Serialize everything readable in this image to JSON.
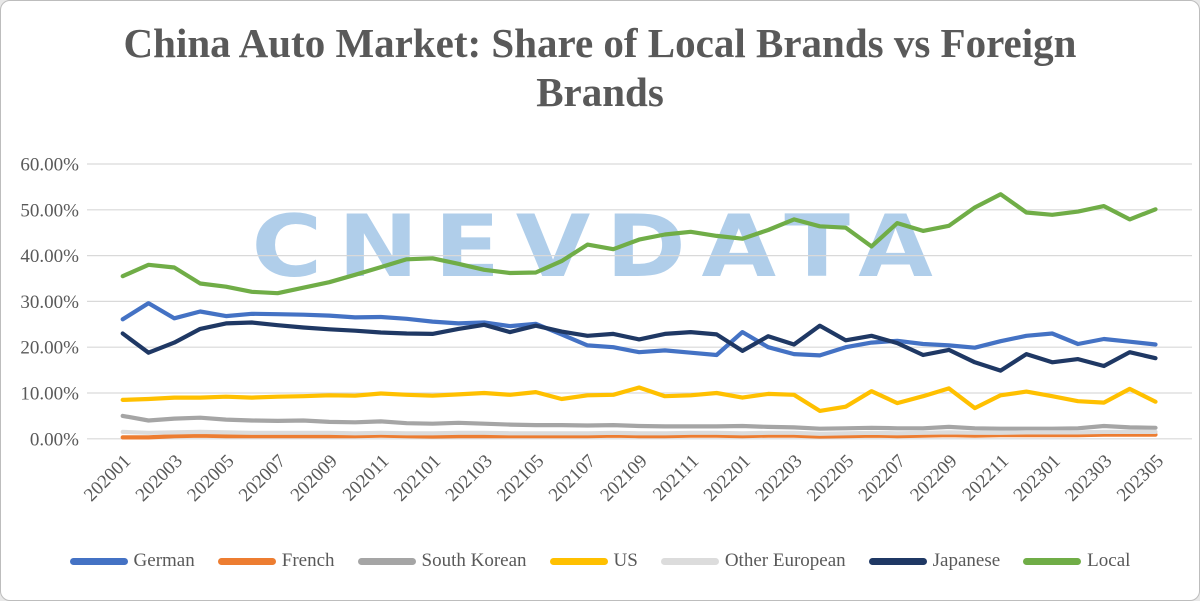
{
  "title": {
    "color": "#595959"
  },
  "watermark": {
    "text": "CNEVDATA",
    "color": "#9DC3E6"
  },
  "panel": {
    "background": "#FFFFFF",
    "border_color": "#BDBDBD",
    "gridline_color": "#D9D9D9",
    "label_color": "#595959"
  },
  "chart_data": {
    "type": "line",
    "title": "China Auto Market: Share of Local Brands vs Foreign Brands",
    "xlabel": "",
    "ylabel": "",
    "ylim": [
      0,
      60
    ],
    "grid": true,
    "legend_position": "bottom",
    "y_tick_labels": [
      "0.00%",
      "10.00%",
      "20.00%",
      "30.00%",
      "40.00%",
      "50.00%",
      "60.00%"
    ],
    "x_tick_labels": [
      "202001",
      "202003",
      "202005",
      "202007",
      "202009",
      "202011",
      "202101",
      "202103",
      "202105",
      "202107",
      "202109",
      "202111",
      "202201",
      "202203",
      "202205",
      "202207",
      "202209",
      "202211",
      "202301",
      "202303",
      "202305"
    ],
    "x": [
      "202001",
      "202002",
      "202003",
      "202004",
      "202005",
      "202006",
      "202007",
      "202008",
      "202009",
      "202010",
      "202011",
      "202012",
      "202101",
      "202102",
      "202103",
      "202104",
      "202105",
      "202106",
      "202107",
      "202108",
      "202109",
      "202110",
      "202111",
      "202112",
      "202201",
      "202202",
      "202203",
      "202204",
      "202205",
      "202206",
      "202207",
      "202208",
      "202209",
      "202210",
      "202211",
      "202212",
      "202301",
      "202302",
      "202303",
      "202304",
      "202305"
    ],
    "series": [
      {
        "name": "German",
        "color": "#4472C4",
        "values": [
          26.1,
          29.6,
          26.3,
          27.8,
          26.8,
          27.3,
          27.2,
          27.1,
          26.9,
          26.5,
          26.6,
          26.2,
          25.6,
          25.2,
          25.4,
          24.6,
          25.1,
          22.8,
          20.4,
          20.0,
          18.9,
          19.3,
          18.8,
          18.3,
          23.3,
          20.0,
          18.5,
          18.2,
          20.0,
          21.0,
          21.4,
          20.7,
          20.4,
          19.9,
          21.3,
          22.5,
          23.0,
          20.7,
          21.8,
          21.2,
          20.6
        ]
      },
      {
        "name": "French",
        "color": "#ED7D31",
        "values": [
          0.3,
          0.3,
          0.6,
          0.7,
          0.6,
          0.6,
          0.6,
          0.6,
          0.6,
          0.6,
          0.7,
          0.6,
          0.5,
          0.6,
          0.6,
          0.6,
          0.6,
          0.6,
          0.6,
          0.7,
          0.6,
          0.6,
          0.7,
          0.7,
          0.6,
          0.7,
          0.7,
          0.5,
          0.6,
          0.7,
          0.6,
          0.7,
          0.8,
          0.7,
          0.8,
          0.8,
          0.8,
          0.8,
          0.9,
          0.9,
          0.9
        ]
      },
      {
        "name": "South Korean",
        "color": "#A5A5A5",
        "values": [
          5.0,
          4.0,
          4.4,
          4.6,
          4.2,
          4.0,
          3.9,
          4.0,
          3.7,
          3.6,
          3.8,
          3.4,
          3.3,
          3.5,
          3.3,
          3.1,
          3.0,
          3.0,
          2.9,
          3.0,
          2.8,
          2.7,
          2.7,
          2.7,
          2.8,
          2.6,
          2.5,
          2.2,
          2.3,
          2.4,
          2.3,
          2.3,
          2.6,
          2.3,
          2.2,
          2.2,
          2.2,
          2.3,
          2.8,
          2.5,
          2.4
        ]
      },
      {
        "name": "US",
        "color": "#FFC000",
        "values": [
          8.5,
          8.7,
          9.0,
          9.0,
          9.2,
          9.0,
          9.2,
          9.3,
          9.5,
          9.4,
          9.9,
          9.6,
          9.4,
          9.7,
          10.0,
          9.6,
          10.2,
          8.7,
          9.5,
          9.6,
          11.2,
          9.3,
          9.5,
          10.0,
          9.0,
          9.8,
          9.6,
          6.1,
          7.0,
          10.4,
          7.8,
          9.3,
          11.0,
          6.7,
          9.5,
          10.3,
          9.3,
          8.2,
          7.9,
          10.9,
          8.1
        ]
      },
      {
        "name": "Other European",
        "color": "#DCDCDC",
        "values": [
          1.5,
          1.3,
          1.4,
          1.5,
          1.4,
          1.3,
          1.3,
          1.3,
          1.3,
          1.2,
          1.3,
          1.2,
          1.2,
          1.3,
          1.3,
          1.2,
          1.2,
          1.2,
          1.2,
          1.3,
          1.2,
          1.2,
          1.3,
          1.3,
          1.2,
          1.3,
          1.3,
          1.1,
          1.2,
          1.3,
          1.2,
          1.3,
          1.4,
          1.3,
          1.3,
          1.4,
          1.4,
          1.4,
          1.5,
          1.5,
          1.5
        ]
      },
      {
        "name": "Japanese",
        "color": "#1F3864",
        "values": [
          23.0,
          18.8,
          21.0,
          24.0,
          25.2,
          25.4,
          24.8,
          24.3,
          23.9,
          23.6,
          23.2,
          23.0,
          22.9,
          24.0,
          24.9,
          23.3,
          24.7,
          23.4,
          22.5,
          22.9,
          21.7,
          22.9,
          23.3,
          22.8,
          19.2,
          22.4,
          20.6,
          24.7,
          21.5,
          22.5,
          20.9,
          18.3,
          19.4,
          16.7,
          14.9,
          18.5,
          16.7,
          17.4,
          15.9,
          18.9,
          17.6
        ]
      },
      {
        "name": "Local",
        "color": "#70AD47",
        "values": [
          35.5,
          38.0,
          37.4,
          33.9,
          33.2,
          32.1,
          31.8,
          33.0,
          34.2,
          35.8,
          37.5,
          39.2,
          39.4,
          38.2,
          36.9,
          36.2,
          36.3,
          38.8,
          42.4,
          41.4,
          43.5,
          44.6,
          45.2,
          44.3,
          43.7,
          45.6,
          47.9,
          46.4,
          46.1,
          42.0,
          47.1,
          45.4,
          46.5,
          50.5,
          53.4,
          49.4,
          48.9,
          49.6,
          50.8,
          47.9,
          50.1
        ]
      }
    ]
  }
}
